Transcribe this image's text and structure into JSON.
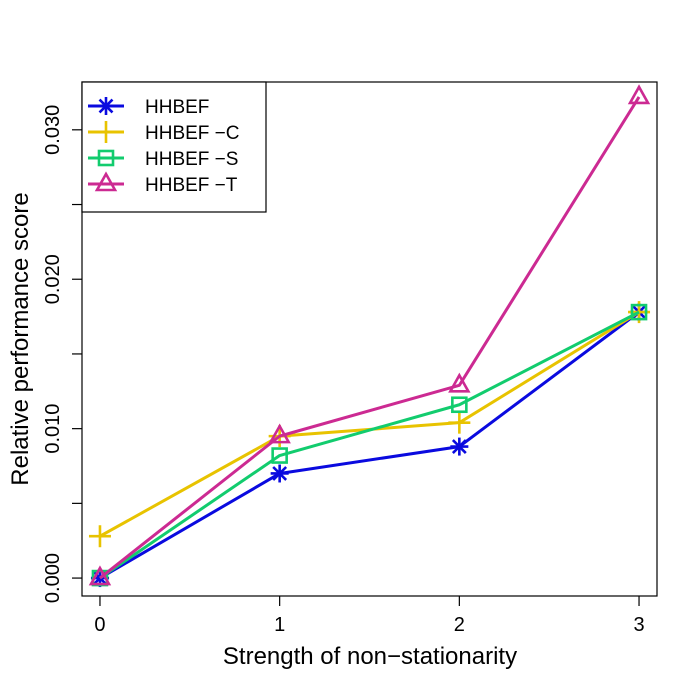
{
  "chart_data": {
    "type": "line",
    "title": "",
    "xlabel": "Strength of non−stationarity",
    "ylabel": "Relative performance score",
    "x": [
      0,
      1,
      2,
      3
    ],
    "xlim": [
      -0.1,
      3.1
    ],
    "ylim": [
      -0.0012,
      0.0332
    ],
    "x_ticks": [
      0,
      1,
      2,
      3
    ],
    "x_tick_labels": [
      "0",
      "1",
      "2",
      "3"
    ],
    "y_ticks": [
      0.0,
      0.005,
      0.01,
      0.015,
      0.02,
      0.025,
      0.03
    ],
    "y_tick_labels": [
      "0.000",
      "",
      "0.010",
      "",
      "0.020",
      "",
      "0.030"
    ],
    "grid": false,
    "legend_position": "top-left",
    "series": [
      {
        "name": "HHBEF",
        "marker": "asterisk",
        "color": "#0a0adf",
        "values": [
          0.0,
          0.007,
          0.0088,
          0.0178
        ]
      },
      {
        "name": "HHBEF −C",
        "marker": "plus",
        "color": "#e8c300",
        "values": [
          0.0028,
          0.0095,
          0.0104,
          0.0178
        ]
      },
      {
        "name": "HHBEF −S",
        "marker": "square",
        "color": "#12cc6e",
        "values": [
          0.0,
          0.0082,
          0.0116,
          0.0178
        ]
      },
      {
        "name": "HHBEF −T",
        "marker": "triangle",
        "color": "#cc2a92",
        "values": [
          0.0,
          0.0095,
          0.0129,
          0.0322
        ]
      }
    ]
  }
}
